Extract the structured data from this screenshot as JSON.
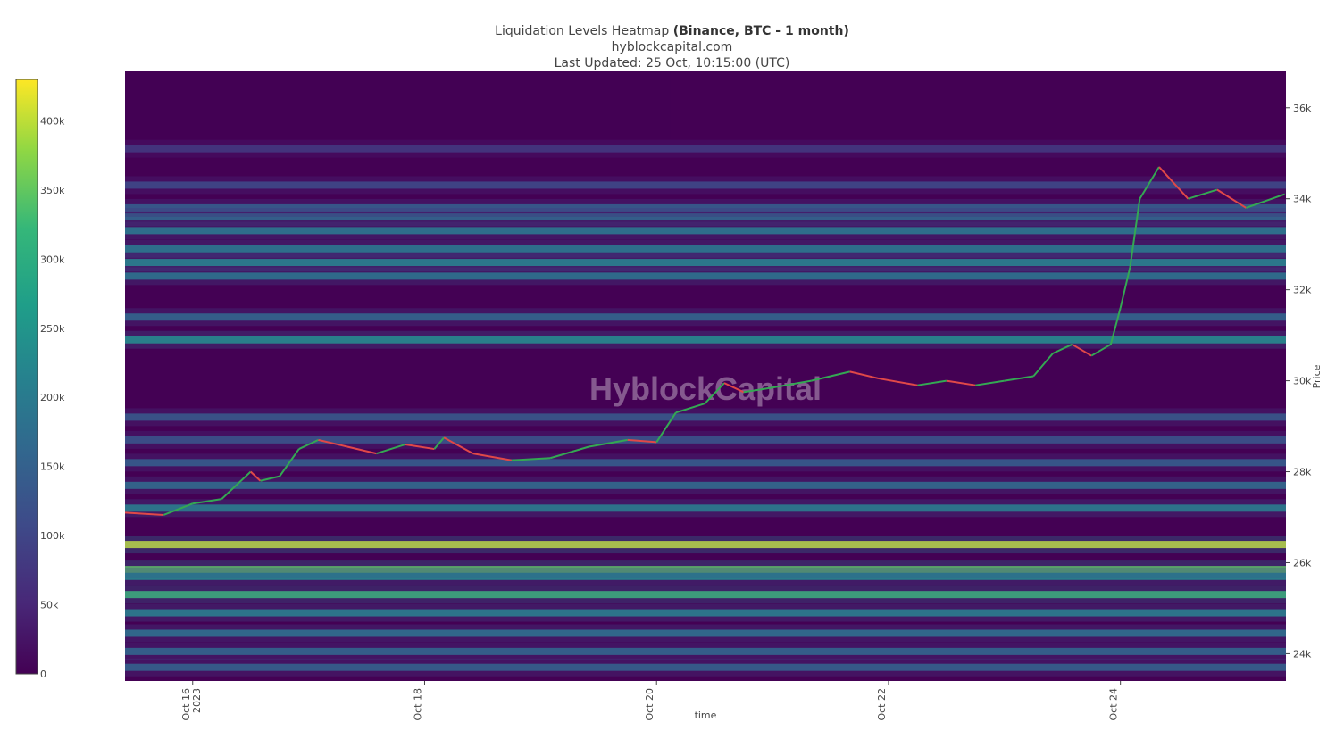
{
  "title": {
    "main": "Liquidation Levels Heatmap",
    "bold": "(Binance, BTC - 1 month)",
    "site": "hyblockcapital.com",
    "updated": "Last Updated: 25 Oct, 10:15:00 (UTC)"
  },
  "watermark": "HyblockCapital",
  "chart_data": {
    "type": "heatmap",
    "xlabel": "time",
    "ylabel": "Price",
    "x_ticks": [
      "Oct 16\n2023",
      "Oct 18",
      "Oct 20",
      "Oct 22",
      "Oct 24"
    ],
    "x_range": [
      "2023-10-15T10:00",
      "2023-10-25T10:15"
    ],
    "y_ticks": [
      24000,
      26000,
      28000,
      30000,
      32000,
      34000,
      36000
    ],
    "y_tick_labels": [
      "24k",
      "26k",
      "28k",
      "30k",
      "32k",
      "34k",
      "36k"
    ],
    "ylim": [
      23400,
      36800
    ],
    "colorbar": {
      "ticks": [
        0,
        50000,
        100000,
        150000,
        200000,
        250000,
        300000,
        350000,
        400000
      ],
      "labels": [
        "0",
        "50k",
        "100k",
        "150k",
        "200k",
        "250k",
        "300k",
        "350k",
        "400k"
      ],
      "range": [
        0,
        430000
      ],
      "colorscale": "viridis"
    },
    "liquidation_bands": [
      {
        "price": 26400,
        "value": 420000
      },
      {
        "price": 25850,
        "value": 360000
      },
      {
        "price": 25300,
        "value": 330000
      },
      {
        "price": 25700,
        "value": 250000
      },
      {
        "price": 24900,
        "value": 230000
      },
      {
        "price": 24450,
        "value": 200000
      },
      {
        "price": 24050,
        "value": 180000
      },
      {
        "price": 23700,
        "value": 170000
      },
      {
        "price": 27200,
        "value": 230000
      },
      {
        "price": 27700,
        "value": 190000
      },
      {
        "price": 28200,
        "value": 160000
      },
      {
        "price": 28700,
        "value": 140000
      },
      {
        "price": 29200,
        "value": 150000
      },
      {
        "price": 30900,
        "value": 260000
      },
      {
        "price": 31400,
        "value": 180000
      },
      {
        "price": 32300,
        "value": 210000
      },
      {
        "price": 32600,
        "value": 240000
      },
      {
        "price": 32900,
        "value": 220000
      },
      {
        "price": 33300,
        "value": 220000
      },
      {
        "price": 33600,
        "value": 180000
      },
      {
        "price": 33800,
        "value": 160000
      },
      {
        "price": 34300,
        "value": 120000
      },
      {
        "price": 35100,
        "value": 90000
      }
    ],
    "price_series": {
      "x": [
        "2023-10-15T10:00",
        "2023-10-15T18:00",
        "2023-10-16T00:00",
        "2023-10-16T06:00",
        "2023-10-16T12:00",
        "2023-10-16T14:00",
        "2023-10-16T18:00",
        "2023-10-16T22:00",
        "2023-10-17T02:00",
        "2023-10-17T08:00",
        "2023-10-17T14:00",
        "2023-10-17T20:00",
        "2023-10-18T02:00",
        "2023-10-18T04:00",
        "2023-10-18T10:00",
        "2023-10-18T18:00",
        "2023-10-19T02:00",
        "2023-10-19T10:00",
        "2023-10-19T18:00",
        "2023-10-20T00:00",
        "2023-10-20T04:00",
        "2023-10-20T10:00",
        "2023-10-20T14:00",
        "2023-10-20T18:00",
        "2023-10-21T00:00",
        "2023-10-21T08:00",
        "2023-10-21T16:00",
        "2023-10-21T22:00",
        "2023-10-22T06:00",
        "2023-10-22T12:00",
        "2023-10-22T18:00",
        "2023-10-23T00:00",
        "2023-10-23T06:00",
        "2023-10-23T10:00",
        "2023-10-23T14:00",
        "2023-10-23T18:00",
        "2023-10-23T22:00",
        "2023-10-24T00:00",
        "2023-10-24T02:00",
        "2023-10-24T04:00",
        "2023-10-24T08:00",
        "2023-10-24T14:00",
        "2023-10-24T20:00",
        "2023-10-25T02:00",
        "2023-10-25T10:00"
      ],
      "y": [
        27100,
        27050,
        27300,
        27400,
        28000,
        27800,
        27900,
        28500,
        28700,
        28550,
        28400,
        28600,
        28500,
        28750,
        28400,
        28250,
        28300,
        28550,
        28700,
        28650,
        29300,
        29500,
        29950,
        29750,
        29850,
        30000,
        30200,
        30050,
        29900,
        30000,
        29900,
        30000,
        30100,
        30600,
        30800,
        30550,
        30800,
        31600,
        32500,
        34000,
        34700,
        34000,
        34200,
        33800,
        34100
      ]
    }
  }
}
